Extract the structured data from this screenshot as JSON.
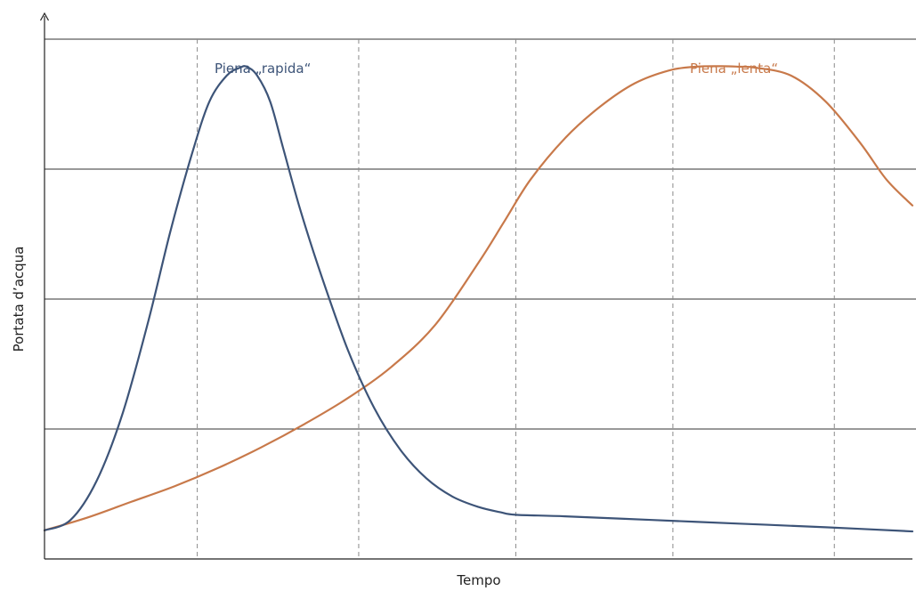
{
  "chart_data": {
    "type": "line",
    "title": "",
    "xlabel": "Tempo",
    "ylabel": "Portata d’acqua",
    "xlim": [
      0,
      1
    ],
    "ylim": [
      0,
      1
    ],
    "grid": {
      "horizontal": "solid",
      "vertical": "dashed"
    },
    "vertical_gridlines_x": [
      0.176,
      0.362,
      0.543,
      0.724,
      0.91
    ],
    "horizontal_gridlines_y": [
      0.25,
      0.5,
      0.75,
      1.0
    ],
    "legend": "none",
    "series": [
      {
        "name": "Piena „rapida“",
        "color": "#3d5478",
        "x": [
          0.0,
          0.03,
          0.06,
          0.09,
          0.12,
          0.145,
          0.17,
          0.19,
          0.21,
          0.225,
          0.233,
          0.245,
          0.26,
          0.275,
          0.295,
          0.32,
          0.35,
          0.38,
          0.41,
          0.44,
          0.47,
          0.5,
          0.525,
          0.543,
          0.6,
          0.7,
          0.8,
          0.9,
          1.0
        ],
        "y": [
          0.055,
          0.075,
          0.15,
          0.28,
          0.46,
          0.63,
          0.78,
          0.88,
          0.93,
          0.945,
          0.947,
          0.93,
          0.88,
          0.79,
          0.67,
          0.54,
          0.4,
          0.29,
          0.21,
          0.155,
          0.12,
          0.1,
          0.09,
          0.085,
          0.082,
          0.075,
          0.068,
          0.061,
          0.053
        ]
      },
      {
        "name": "Piena „lenta“",
        "color": "#c8794a",
        "x": [
          0.0,
          0.05,
          0.1,
          0.15,
          0.2,
          0.25,
          0.3,
          0.35,
          0.4,
          0.45,
          0.5,
          0.53,
          0.56,
          0.6,
          0.64,
          0.68,
          0.72,
          0.75,
          0.78,
          0.8,
          0.82,
          0.86,
          0.9,
          0.94,
          0.97,
          1.0
        ],
        "y": [
          0.055,
          0.08,
          0.11,
          0.14,
          0.175,
          0.215,
          0.26,
          0.31,
          0.37,
          0.45,
          0.57,
          0.65,
          0.73,
          0.81,
          0.87,
          0.915,
          0.94,
          0.947,
          0.948,
          0.947,
          0.945,
          0.93,
          0.88,
          0.8,
          0.73,
          0.68
        ]
      }
    ]
  }
}
